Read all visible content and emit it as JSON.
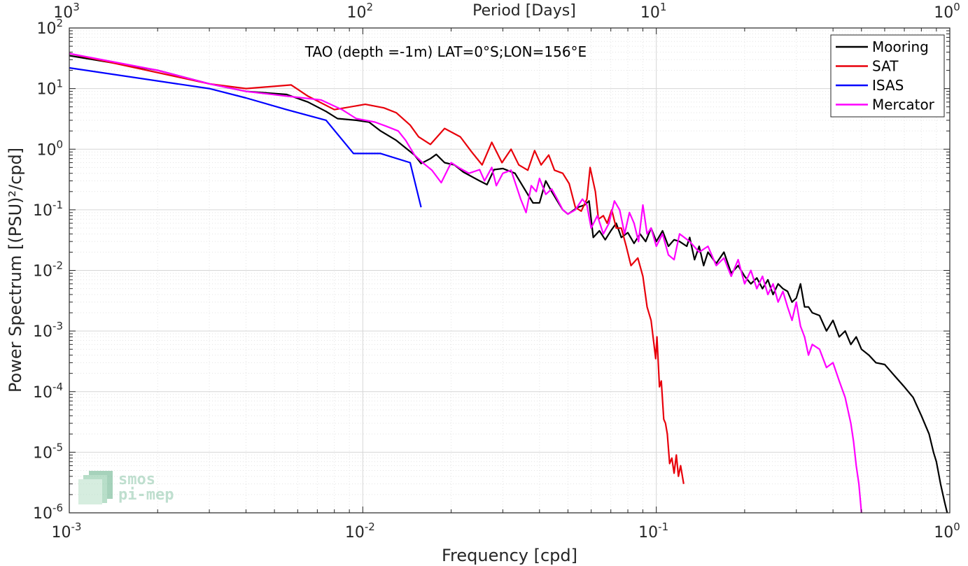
{
  "chart_data": {
    "type": "line",
    "title": "TAO (depth =-1m) LAT=0°S;LON=156°E",
    "xlabel": "Frequency [cpd]",
    "ylabel": "Power Spectrum [(PSU)²/cpd]",
    "top_xlabel": "Period [Days]",
    "x_scale": "log",
    "y_scale": "log",
    "xlim": [
      0.001,
      1
    ],
    "ylim": [
      1e-06,
      100
    ],
    "grid": true,
    "legend_position": "top-right",
    "x_ticks": [
      {
        "value": 0.001,
        "base": "10",
        "exp": "-3"
      },
      {
        "value": 0.01,
        "base": "10",
        "exp": "-2"
      },
      {
        "value": 0.1,
        "base": "10",
        "exp": "-1"
      },
      {
        "value": 1,
        "base": "10",
        "exp": "0"
      }
    ],
    "y_ticks": [
      {
        "value": 100,
        "base": "10",
        "exp": "2"
      },
      {
        "value": 10,
        "base": "10",
        "exp": "1"
      },
      {
        "value": 1,
        "base": "10",
        "exp": "0"
      },
      {
        "value": 0.1,
        "base": "10",
        "exp": "-1"
      },
      {
        "value": 0.01,
        "base": "10",
        "exp": "-2"
      },
      {
        "value": 0.001,
        "base": "10",
        "exp": "-3"
      },
      {
        "value": 0.0001,
        "base": "10",
        "exp": "-4"
      },
      {
        "value": 1e-05,
        "base": "10",
        "exp": "-5"
      },
      {
        "value": 1e-06,
        "base": "10",
        "exp": "-6"
      }
    ],
    "top_ticks": [
      {
        "frequency": 0.001,
        "base": "10",
        "exp": "3"
      },
      {
        "frequency": 0.01,
        "base": "10",
        "exp": "2"
      },
      {
        "frequency": 0.1,
        "base": "10",
        "exp": "1"
      },
      {
        "frequency": 1,
        "base": "10",
        "exp": "0"
      }
    ],
    "series": [
      {
        "name": "Mooring",
        "color": "#000000",
        "points": [
          [
            0.001,
            35
          ],
          [
            0.002,
            20
          ],
          [
            0.003,
            12
          ],
          [
            0.004,
            9
          ],
          [
            0.0055,
            8
          ],
          [
            0.0065,
            6
          ],
          [
            0.0075,
            4.2
          ],
          [
            0.0082,
            3.2
          ],
          [
            0.0095,
            3.0
          ],
          [
            0.0105,
            2.8
          ],
          [
            0.0115,
            2.0
          ],
          [
            0.013,
            1.4
          ],
          [
            0.015,
            0.8
          ],
          [
            0.0158,
            0.58
          ],
          [
            0.017,
            0.7
          ],
          [
            0.0178,
            0.82
          ],
          [
            0.019,
            0.6
          ],
          [
            0.0205,
            0.55
          ],
          [
            0.022,
            0.42
          ],
          [
            0.025,
            0.3
          ],
          [
            0.0265,
            0.26
          ],
          [
            0.028,
            0.46
          ],
          [
            0.03,
            0.48
          ],
          [
            0.033,
            0.4
          ],
          [
            0.036,
            0.2
          ],
          [
            0.038,
            0.13
          ],
          [
            0.04,
            0.13
          ],
          [
            0.042,
            0.3
          ],
          [
            0.044,
            0.2
          ],
          [
            0.046,
            0.14
          ],
          [
            0.048,
            0.1
          ],
          [
            0.05,
            0.085
          ],
          [
            0.054,
            0.11
          ],
          [
            0.057,
            0.12
          ],
          [
            0.059,
            0.14
          ],
          [
            0.061,
            0.035
          ],
          [
            0.064,
            0.045
          ],
          [
            0.067,
            0.032
          ],
          [
            0.07,
            0.045
          ],
          [
            0.073,
            0.06
          ],
          [
            0.076,
            0.035
          ],
          [
            0.08,
            0.042
          ],
          [
            0.084,
            0.028
          ],
          [
            0.088,
            0.04
          ],
          [
            0.092,
            0.03
          ],
          [
            0.096,
            0.05
          ],
          [
            0.1,
            0.03
          ],
          [
            0.105,
            0.045
          ],
          [
            0.11,
            0.025
          ],
          [
            0.115,
            0.032
          ],
          [
            0.12,
            0.03
          ],
          [
            0.127,
            0.025
          ],
          [
            0.13,
            0.035
          ],
          [
            0.135,
            0.015
          ],
          [
            0.14,
            0.025
          ],
          [
            0.145,
            0.012
          ],
          [
            0.15,
            0.02
          ],
          [
            0.16,
            0.013
          ],
          [
            0.17,
            0.02
          ],
          [
            0.18,
            0.009
          ],
          [
            0.19,
            0.012
          ],
          [
            0.2,
            0.008
          ],
          [
            0.21,
            0.006
          ],
          [
            0.22,
            0.0075
          ],
          [
            0.23,
            0.005
          ],
          [
            0.24,
            0.007
          ],
          [
            0.25,
            0.004
          ],
          [
            0.26,
            0.006
          ],
          [
            0.27,
            0.005
          ],
          [
            0.28,
            0.0045
          ],
          [
            0.29,
            0.003
          ],
          [
            0.3,
            0.0035
          ],
          [
            0.31,
            0.006
          ],
          [
            0.32,
            0.0025
          ],
          [
            0.33,
            0.0025
          ],
          [
            0.34,
            0.002
          ],
          [
            0.36,
            0.0018
          ],
          [
            0.38,
            0.001
          ],
          [
            0.4,
            0.0015
          ],
          [
            0.42,
            0.0008
          ],
          [
            0.44,
            0.001
          ],
          [
            0.46,
            0.0006
          ],
          [
            0.48,
            0.0008
          ],
          [
            0.5,
            0.0005
          ],
          [
            0.53,
            0.0004
          ],
          [
            0.56,
            0.0003
          ],
          [
            0.6,
            0.00028
          ],
          [
            0.65,
            0.00018
          ],
          [
            0.7,
            0.00012
          ],
          [
            0.75,
            8e-05
          ],
          [
            0.8,
            4e-05
          ],
          [
            0.85,
            2e-05
          ],
          [
            0.88,
            1e-05
          ],
          [
            0.9,
            7e-06
          ],
          [
            0.93,
            3e-06
          ],
          [
            0.96,
            1.5e-06
          ],
          [
            0.98,
            1e-06
          ]
        ]
      },
      {
        "name": "SAT",
        "color": "#e8000b",
        "points": [
          [
            0.001,
            38
          ],
          [
            0.003,
            12
          ],
          [
            0.004,
            10
          ],
          [
            0.0057,
            11.5
          ],
          [
            0.0065,
            7.5
          ],
          [
            0.008,
            4.5
          ],
          [
            0.0102,
            5.5
          ],
          [
            0.0118,
            4.8
          ],
          [
            0.013,
            4.0
          ],
          [
            0.0145,
            2.5
          ],
          [
            0.0155,
            1.6
          ],
          [
            0.017,
            1.2
          ],
          [
            0.019,
            2.2
          ],
          [
            0.0215,
            1.6
          ],
          [
            0.0235,
            0.9
          ],
          [
            0.0255,
            0.55
          ],
          [
            0.0275,
            1.3
          ],
          [
            0.0298,
            0.6
          ],
          [
            0.032,
            1.0
          ],
          [
            0.034,
            0.55
          ],
          [
            0.0365,
            0.45
          ],
          [
            0.0385,
            0.95
          ],
          [
            0.0405,
            0.55
          ],
          [
            0.043,
            0.8
          ],
          [
            0.045,
            0.45
          ],
          [
            0.048,
            0.4
          ],
          [
            0.0505,
            0.27
          ],
          [
            0.053,
            0.11
          ],
          [
            0.0555,
            0.095
          ],
          [
            0.058,
            0.15
          ],
          [
            0.0595,
            0.5
          ],
          [
            0.062,
            0.2
          ],
          [
            0.0635,
            0.07
          ],
          [
            0.066,
            0.08
          ],
          [
            0.068,
            0.06
          ],
          [
            0.0705,
            0.1
          ],
          [
            0.073,
            0.05
          ],
          [
            0.076,
            0.05
          ],
          [
            0.079,
            0.025
          ],
          [
            0.082,
            0.012
          ],
          [
            0.0865,
            0.016
          ],
          [
            0.09,
            0.008
          ],
          [
            0.093,
            0.0025
          ],
          [
            0.096,
            0.0015
          ],
          [
            0.0995,
            0.00035
          ],
          [
            0.1005,
            0.0008
          ],
          [
            0.1025,
            0.00012
          ],
          [
            0.104,
            0.00015
          ],
          [
            0.106,
            3.5e-05
          ],
          [
            0.1075,
            3e-05
          ],
          [
            0.109,
            2e-05
          ],
          [
            0.111,
            6.5e-06
          ],
          [
            0.113,
            8e-06
          ],
          [
            0.115,
            4.5e-06
          ],
          [
            0.117,
            9e-06
          ],
          [
            0.119,
            4e-06
          ],
          [
            0.121,
            6e-06
          ],
          [
            0.124,
            3e-06
          ]
        ]
      },
      {
        "name": "ISAS",
        "color": "#0000ff",
        "points": [
          [
            0.001,
            22
          ],
          [
            0.003,
            10
          ],
          [
            0.004,
            7
          ],
          [
            0.0055,
            4.5
          ],
          [
            0.0075,
            3.0
          ],
          [
            0.0093,
            0.85
          ],
          [
            0.0115,
            0.85
          ],
          [
            0.0145,
            0.6
          ],
          [
            0.0158,
            0.11
          ]
        ]
      },
      {
        "name": "Mercator",
        "color": "#ff00ff",
        "points": [
          [
            0.001,
            38
          ],
          [
            0.002,
            20
          ],
          [
            0.003,
            12
          ],
          [
            0.004,
            9
          ],
          [
            0.0055,
            7.5
          ],
          [
            0.0072,
            6.5
          ],
          [
            0.0085,
            4.5
          ],
          [
            0.0095,
            3.2
          ],
          [
            0.011,
            2.8
          ],
          [
            0.012,
            2.4
          ],
          [
            0.0132,
            2.0
          ],
          [
            0.014,
            1.4
          ],
          [
            0.015,
            0.8
          ],
          [
            0.016,
            0.6
          ],
          [
            0.0172,
            0.45
          ],
          [
            0.0185,
            0.28
          ],
          [
            0.02,
            0.6
          ],
          [
            0.0215,
            0.48
          ],
          [
            0.023,
            0.4
          ],
          [
            0.025,
            0.46
          ],
          [
            0.026,
            0.3
          ],
          [
            0.0275,
            0.5
          ],
          [
            0.0285,
            0.25
          ],
          [
            0.03,
            0.4
          ],
          [
            0.032,
            0.45
          ],
          [
            0.0345,
            0.15
          ],
          [
            0.036,
            0.09
          ],
          [
            0.0375,
            0.25
          ],
          [
            0.039,
            0.2
          ],
          [
            0.04,
            0.33
          ],
          [
            0.042,
            0.18
          ],
          [
            0.044,
            0.22
          ],
          [
            0.046,
            0.15
          ],
          [
            0.048,
            0.1
          ],
          [
            0.05,
            0.085
          ],
          [
            0.053,
            0.1
          ],
          [
            0.056,
            0.15
          ],
          [
            0.058,
            0.12
          ],
          [
            0.06,
            0.05
          ],
          [
            0.063,
            0.08
          ],
          [
            0.066,
            0.04
          ],
          [
            0.069,
            0.06
          ],
          [
            0.072,
            0.14
          ],
          [
            0.075,
            0.1
          ],
          [
            0.078,
            0.04
          ],
          [
            0.081,
            0.09
          ],
          [
            0.084,
            0.06
          ],
          [
            0.087,
            0.03
          ],
          [
            0.09,
            0.12
          ],
          [
            0.093,
            0.04
          ],
          [
            0.096,
            0.05
          ],
          [
            0.1,
            0.025
          ],
          [
            0.105,
            0.04
          ],
          [
            0.11,
            0.018
          ],
          [
            0.115,
            0.015
          ],
          [
            0.12,
            0.04
          ],
          [
            0.13,
            0.03
          ],
          [
            0.14,
            0.02
          ],
          [
            0.15,
            0.025
          ],
          [
            0.16,
            0.012
          ],
          [
            0.17,
            0.016
          ],
          [
            0.18,
            0.008
          ],
          [
            0.19,
            0.015
          ],
          [
            0.2,
            0.006
          ],
          [
            0.21,
            0.01
          ],
          [
            0.22,
            0.005
          ],
          [
            0.23,
            0.008
          ],
          [
            0.24,
            0.004
          ],
          [
            0.25,
            0.006
          ],
          [
            0.26,
            0.003
          ],
          [
            0.27,
            0.0045
          ],
          [
            0.28,
            0.0025
          ],
          [
            0.29,
            0.0015
          ],
          [
            0.3,
            0.003
          ],
          [
            0.31,
            0.0012
          ],
          [
            0.32,
            0.0008
          ],
          [
            0.33,
            0.0004
          ],
          [
            0.34,
            0.0006
          ],
          [
            0.36,
            0.0005
          ],
          [
            0.38,
            0.00025
          ],
          [
            0.4,
            0.0003
          ],
          [
            0.42,
            0.00015
          ],
          [
            0.44,
            8e-05
          ],
          [
            0.46,
            3e-05
          ],
          [
            0.47,
            1.5e-05
          ],
          [
            0.48,
            6e-06
          ],
          [
            0.49,
            3e-06
          ],
          [
            0.5,
            1e-06
          ]
        ]
      }
    ]
  },
  "logo": {
    "line1": "smos",
    "line2": "pi-mep"
  }
}
